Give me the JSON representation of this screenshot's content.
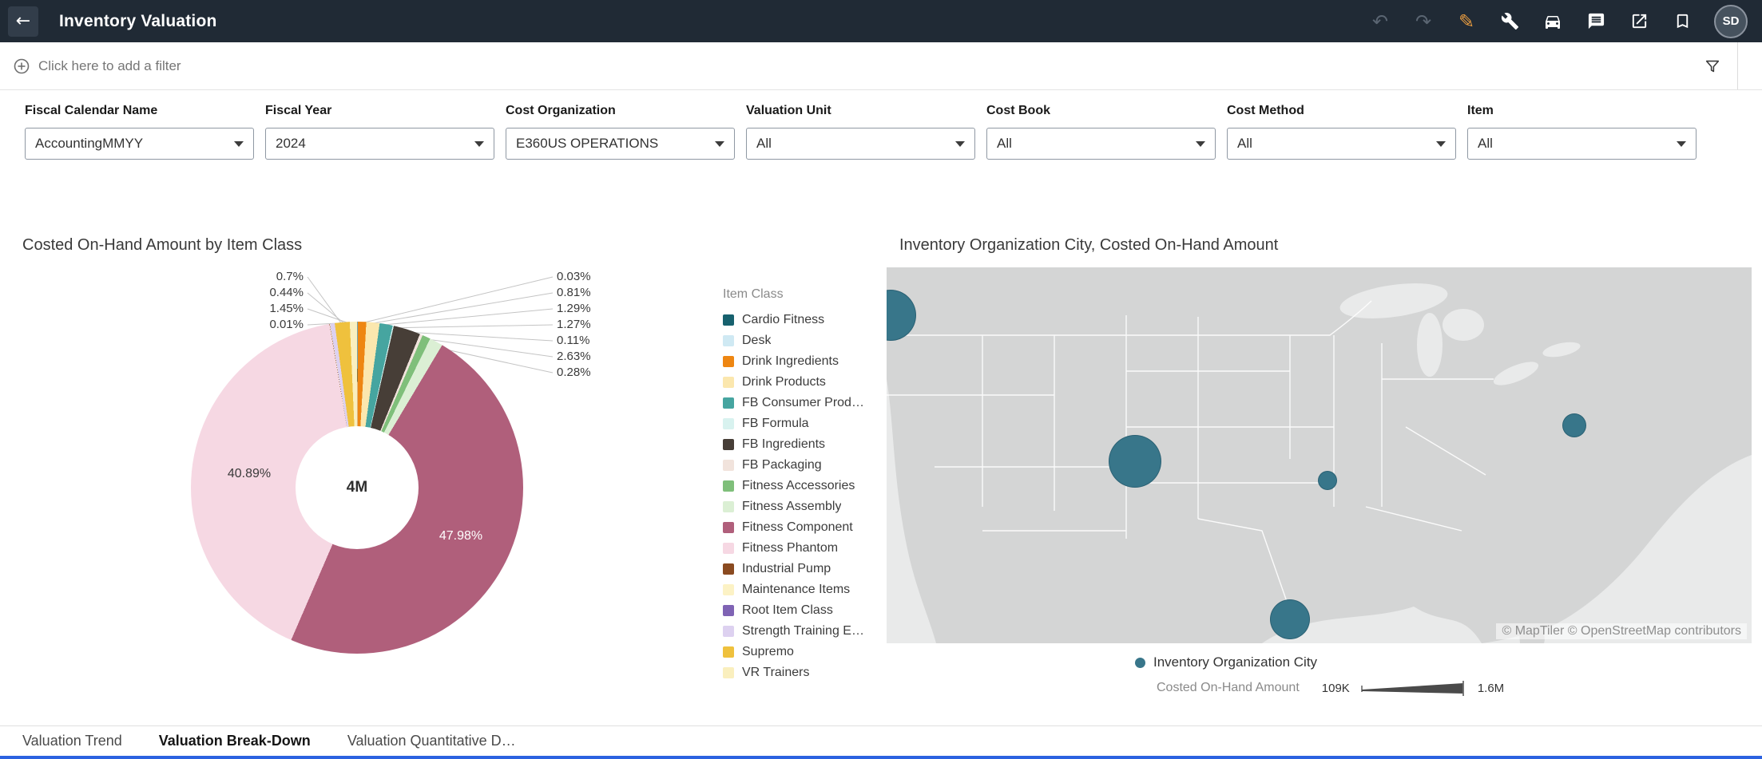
{
  "header": {
    "title": "Inventory Valuation",
    "back_glyph": "←",
    "undo_glyph": "↶",
    "redo_glyph": "↷",
    "edit_glyph": "✎",
    "avatar_initials": "SD",
    "toolbar_icons": [
      "undo",
      "redo",
      "edit",
      "tools",
      "auto-insights",
      "comments",
      "export",
      "bookmark"
    ],
    "colors": {
      "bar_bg": "#202A35",
      "edit_accent": "#E79B3F"
    }
  },
  "filter_bar": {
    "add_filter_label": "Click here to add a filter"
  },
  "filters": {
    "items": [
      {
        "label": "Fiscal Calendar Name",
        "value": "AccountingMMYY"
      },
      {
        "label": "Fiscal Year",
        "value": "2024"
      },
      {
        "label": "Cost Organization",
        "value": "E360US OPERATIONS"
      },
      {
        "label": "Valuation Unit",
        "value": "All"
      },
      {
        "label": "Cost Book",
        "value": "All"
      },
      {
        "label": "Cost Method",
        "value": "All"
      },
      {
        "label": "Item",
        "value": "All"
      }
    ]
  },
  "chart_data": [
    {
      "type": "pie",
      "subtype": "donut",
      "title": "Costed On-Hand Amount by Item Class",
      "center_label": "4M",
      "legend_title": "Item Class",
      "legend_position": "right",
      "series": [
        {
          "name": "Cardio Fitness",
          "value": 0.03,
          "color": "#17616E"
        },
        {
          "name": "Desk",
          "value": 0.05,
          "color": "#CFE9F3"
        },
        {
          "name": "Drink Ingredients",
          "value": 0.81,
          "color": "#EE8612"
        },
        {
          "name": "Drink Products",
          "value": 1.29,
          "color": "#FBE7AE"
        },
        {
          "name": "FB Consumer Prod…",
          "value": 1.27,
          "color": "#46A5A0"
        },
        {
          "name": "FB Formula",
          "value": 0.11,
          "color": "#D8F2EF"
        },
        {
          "name": "FB Ingredients",
          "value": 2.63,
          "color": "#473E37"
        },
        {
          "name": "FB Packaging",
          "value": 0.28,
          "color": "#F1E3DC"
        },
        {
          "name": "Fitness Accessories",
          "value": 0.8,
          "color": "#7FBF7A"
        },
        {
          "name": "Fitness Assembly",
          "value": 1.3,
          "color": "#DBEFD4"
        },
        {
          "name": "Fitness Component",
          "value": 47.98,
          "color": "#B05F7B"
        },
        {
          "name": "Fitness Phantom",
          "value": 40.89,
          "color": "#F6D8E3"
        },
        {
          "name": "Industrial Pump",
          "value": 0.02,
          "color": "#8A4A20"
        },
        {
          "name": "Maintenance Items",
          "value": 0.04,
          "color": "#FCF2C5"
        },
        {
          "name": "Root Item Class",
          "value": 0.01,
          "color": "#7F63B4"
        },
        {
          "name": "Strength Training E…",
          "value": 0.44,
          "color": "#DDD1F0"
        },
        {
          "name": "Supremo",
          "value": 1.45,
          "color": "#EFC13D"
        },
        {
          "name": "VR Trainers",
          "value": 0.7,
          "color": "#FAEFBE"
        }
      ],
      "slice_labels": {
        "component": "47.98%",
        "phantom": "40.89%"
      },
      "callouts_left": [
        "0.7%",
        "0.44%",
        "1.45%",
        "0.01%"
      ],
      "callouts_right": [
        "0.03%",
        "0.81%",
        "1.29%",
        "1.27%",
        "0.11%",
        "2.63%",
        "0.28%"
      ]
    },
    {
      "type": "scatter",
      "subtype": "bubble-map",
      "title": "Inventory Organization City, Costed On-Hand Amount",
      "attribution": "© MapTiler © OpenStreetMap contributors",
      "point_color": "#38768A",
      "legend": {
        "point_label": "Inventory Organization City",
        "size_label": "Costed On-Hand Amount",
        "size_min": "109K",
        "size_max": "1.6M"
      },
      "bubbles": [
        {
          "x_pct": 0.4,
          "y_pct": 12.5,
          "r": 31
        },
        {
          "x_pct": 28.6,
          "y_pct": 51.3,
          "r": 32
        },
        {
          "x_pct": 50.9,
          "y_pct": 56.4,
          "r": 11
        },
        {
          "x_pct": 79.4,
          "y_pct": 41.8,
          "r": 14
        },
        {
          "x_pct": 46.5,
          "y_pct": 93.4,
          "r": 24
        }
      ]
    }
  ],
  "tabs": {
    "items": [
      {
        "label": "Valuation Trend",
        "active": false
      },
      {
        "label": "Valuation Break-Down",
        "active": true
      },
      {
        "label": "Valuation Quantitative D…",
        "active": false
      }
    ]
  }
}
